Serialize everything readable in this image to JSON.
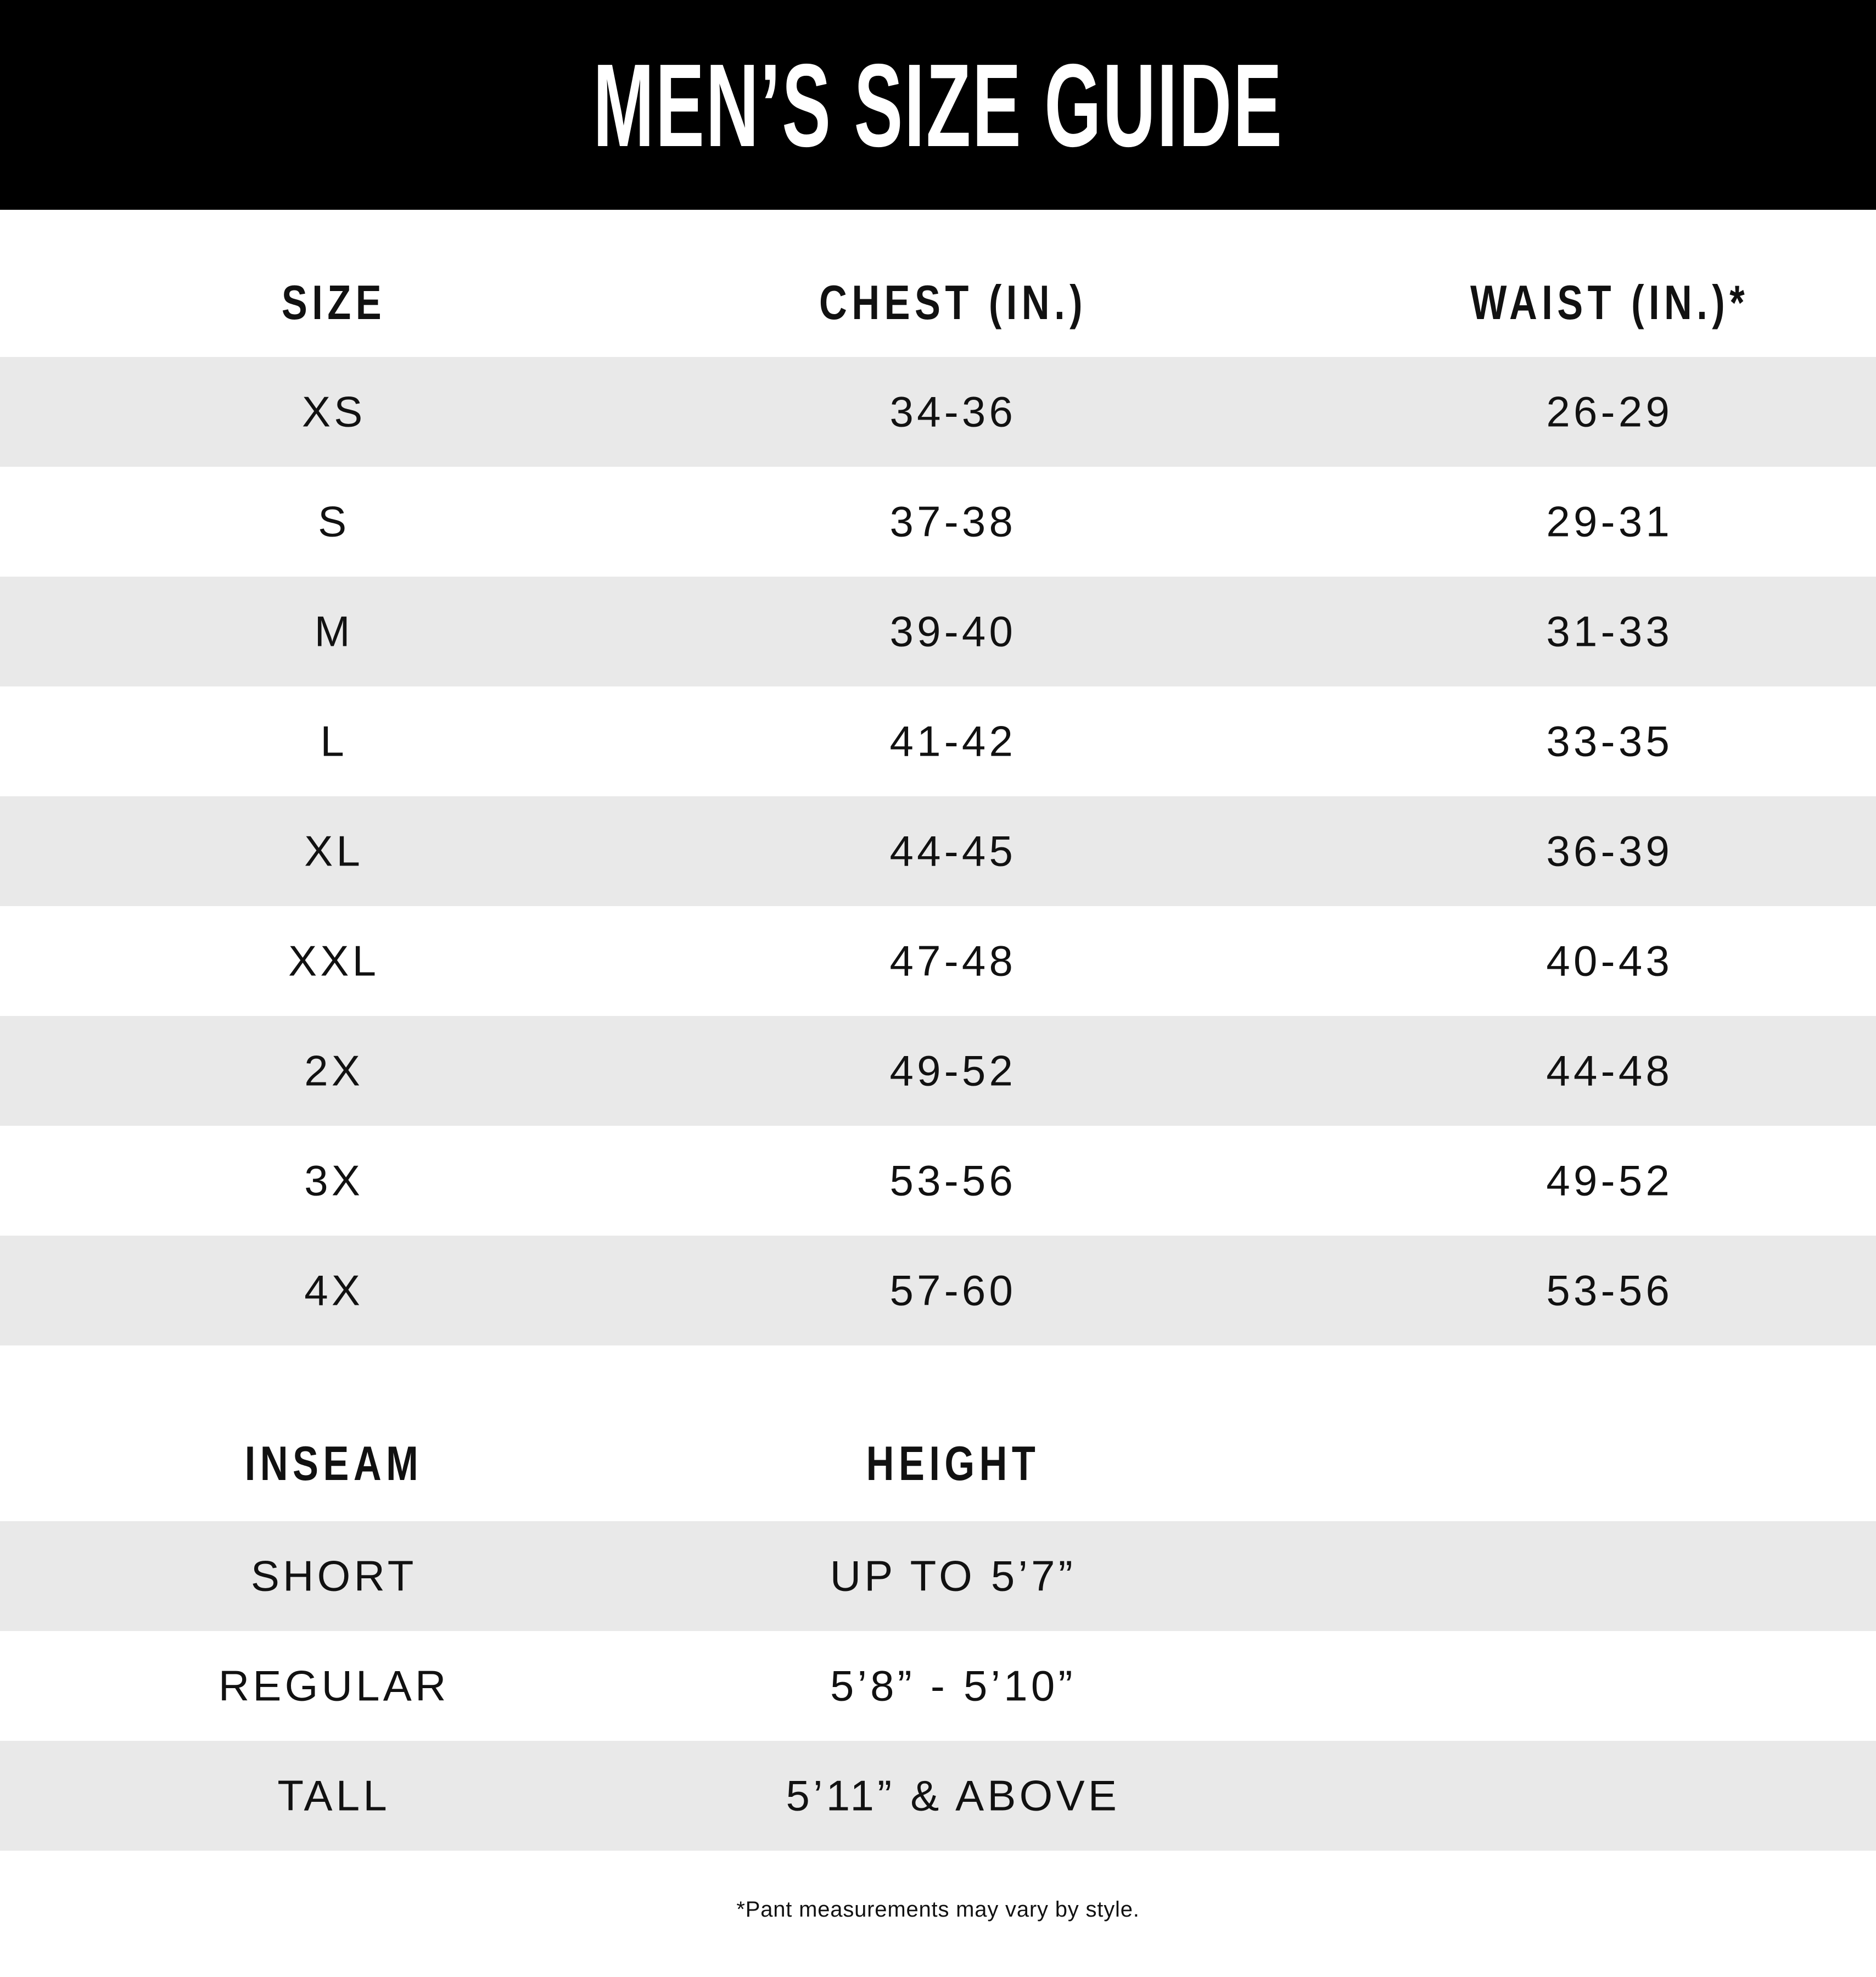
{
  "title": "MEN’S SIZE GUIDE",
  "colors": {
    "header_bg": "#000000",
    "banner_text": "#ffffff",
    "stripe_bg": "#e9e9e9",
    "row_bg": "#ffffff",
    "text_color": "#111111"
  },
  "size_table": {
    "headers": [
      "SIZE",
      "CHEST (IN.)",
      "WAIST (IN.)*"
    ],
    "rows": [
      {
        "label": "XS",
        "chest": "34-36",
        "waist": "26-29"
      },
      {
        "label": "S",
        "chest": "37-38",
        "waist": "29-31"
      },
      {
        "label": "M",
        "chest": "39-40",
        "waist": "31-33"
      },
      {
        "label": "L",
        "chest": "41-42",
        "waist": "33-35"
      },
      {
        "label": "XL",
        "chest": "44-45",
        "waist": "36-39"
      },
      {
        "label": "XXL",
        "chest": "47-48",
        "waist": "40-43"
      },
      {
        "label": "2X",
        "chest": "49-52",
        "waist": "44-48"
      },
      {
        "label": "3X",
        "chest": "53-56",
        "waist": "49-52"
      },
      {
        "label": "4X",
        "chest": "57-60",
        "waist": "53-56"
      }
    ]
  },
  "inseam_table": {
    "headers": [
      "INSEAM",
      "HEIGHT"
    ],
    "rows": [
      {
        "label": "SHORT",
        "height": "UP TO 5’7”"
      },
      {
        "label": "REGULAR",
        "height": "5’8” - 5’10”"
      },
      {
        "label": "TALL",
        "height": "5’11” & ABOVE"
      }
    ]
  },
  "footnote": "*Pant measurements may vary by style."
}
